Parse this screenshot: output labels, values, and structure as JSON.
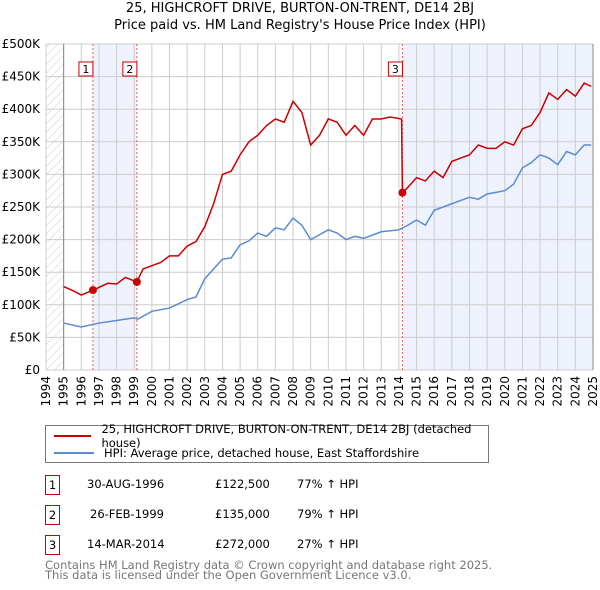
{
  "header": {
    "title": "25, HIGHCROFT DRIVE, BURTON-ON-TRENT, DE14 2BJ",
    "subtitle": "Price paid vs. HM Land Registry's House Price Index (HPI)"
  },
  "chart_data": {
    "type": "line",
    "title": "25, HIGHCROFT DRIVE, BURTON-ON-TRENT, DE14 2BJ",
    "subtitle": "Price paid vs. HM Land Registry's House Price Index (HPI)",
    "xlim": [
      1994,
      2025
    ],
    "ylim": [
      0,
      500000
    ],
    "y_ticks": [
      0,
      50000,
      100000,
      150000,
      200000,
      250000,
      300000,
      350000,
      400000,
      450000,
      500000
    ],
    "y_tick_labels": [
      "£0",
      "£50K",
      "£100K",
      "£150K",
      "£200K",
      "£250K",
      "£300K",
      "£350K",
      "£400K",
      "£450K",
      "£500K"
    ],
    "x_ticks": [
      1994,
      1995,
      1996,
      1997,
      1998,
      1999,
      2000,
      2001,
      2002,
      2003,
      2004,
      2005,
      2006,
      2007,
      2008,
      2009,
      2010,
      2011,
      2012,
      2013,
      2014,
      2015,
      2016,
      2017,
      2018,
      2019,
      2020,
      2021,
      2022,
      2023,
      2024,
      2025
    ],
    "grid": true,
    "colors": {
      "property": "#cc0000",
      "hpi": "#5b8bd0",
      "shade": "#eef2fc"
    },
    "series": [
      {
        "name": "25, HIGHCROFT DRIVE, BURTON-ON-TRENT, DE14 2BJ (detached house)",
        "x": [
          1995,
          1995.5,
          1996,
          1996.66,
          1997.5,
          1998,
          1998.5,
          1999.15,
          1999.5,
          2000,
          2000.5,
          2001,
          2001.5,
          2002,
          2002.5,
          2003,
          2003.5,
          2004,
          2004.5,
          2005,
          2005.5,
          2006,
          2006.5,
          2007,
          2007.5,
          2008,
          2008.5,
          2009,
          2009.5,
          2010,
          2010.5,
          2011,
          2011.5,
          2012,
          2012.5,
          2013,
          2013.5,
          2014.15,
          2014.2,
          2014.5,
          2015,
          2015.5,
          2016,
          2016.5,
          2017,
          2017.5,
          2018,
          2018.5,
          2019,
          2019.5,
          2020,
          2020.5,
          2021,
          2021.5,
          2022,
          2022.5,
          2023,
          2023.5,
          2024,
          2024.5,
          2024.9
        ],
        "y": [
          128000,
          122000,
          115000,
          122500,
          133000,
          132000,
          142000,
          135000,
          155000,
          160000,
          165000,
          175000,
          175000,
          190000,
          197000,
          220000,
          255000,
          300000,
          305000,
          330000,
          350000,
          360000,
          375000,
          385000,
          380000,
          412000,
          395000,
          345000,
          360000,
          385000,
          380000,
          360000,
          375000,
          360000,
          385000,
          385000,
          388000,
          385000,
          272000,
          280000,
          295000,
          290000,
          305000,
          295000,
          320000,
          325000,
          330000,
          345000,
          340000,
          340000,
          350000,
          345000,
          370000,
          375000,
          395000,
          425000,
          415000,
          430000,
          420000,
          440000,
          435000
        ]
      },
      {
        "name": "HPI: Average price, detached house, East Staffordshire",
        "x": [
          1995,
          1996,
          1997,
          1998,
          1999,
          1999.2,
          2000,
          2001,
          2002,
          2002.5,
          2003,
          2004,
          2004.5,
          2005,
          2005.5,
          2006,
          2006.5,
          2007,
          2007.5,
          2008,
          2008.5,
          2009,
          2010,
          2010.5,
          2011,
          2011.5,
          2012,
          2013,
          2014,
          2014.5,
          2015,
          2015.5,
          2016,
          2017,
          2018,
          2018.5,
          2019,
          2020,
          2020.5,
          2021,
          2021.5,
          2022,
          2022.5,
          2023,
          2023.5,
          2024,
          2024.5,
          2024.9
        ],
        "y": [
          72000,
          66000,
          72000,
          76000,
          80000,
          78000,
          90000,
          95000,
          108000,
          112000,
          140000,
          170000,
          172000,
          192000,
          198000,
          210000,
          205000,
          218000,
          215000,
          233000,
          222000,
          200000,
          215000,
          210000,
          200000,
          205000,
          202000,
          212000,
          215000,
          222000,
          230000,
          222000,
          245000,
          255000,
          265000,
          262000,
          270000,
          275000,
          285000,
          310000,
          318000,
          330000,
          325000,
          315000,
          335000,
          330000,
          345000,
          345000
        ]
      }
    ],
    "sales": [
      {
        "label": "1",
        "x": 1996.66,
        "y": 122500,
        "date": "30-AUG-1996",
        "price": "£122,500",
        "hpi": "77% ↑ HPI"
      },
      {
        "label": "2",
        "x": 1999.15,
        "y": 135000,
        "date": "26-FEB-1999",
        "price": "£135,000",
        "hpi": "79% ↑ HPI"
      },
      {
        "label": "3",
        "x": 2014.2,
        "y": 272000,
        "date": "14-MAR-2014",
        "price": "£272,000",
        "hpi": "27% ↑ HPI"
      }
    ],
    "shaded_ranges": [
      [
        1996.66,
        1999.15
      ],
      [
        2014.2,
        2025
      ]
    ]
  },
  "legend": {
    "property": "25, HIGHCROFT DRIVE, BURTON-ON-TRENT, DE14 2BJ (detached house)",
    "hpi": "HPI: Average price, detached house, East Staffordshire"
  },
  "footer": {
    "line1": "Contains HM Land Registry data © Crown copyright and database right 2025.",
    "line2": "This data is licensed under the Open Government Licence v3.0."
  }
}
